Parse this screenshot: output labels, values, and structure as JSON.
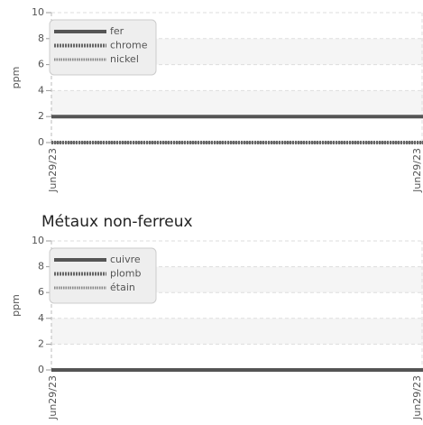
{
  "chart_data": [
    {
      "type": "line",
      "ylabel": "ppm",
      "categories": [
        "Jun29/23",
        "Jun29/23"
      ],
      "series": [
        {
          "name": "fer",
          "color": "#555555",
          "style": "solid",
          "values": [
            2,
            2
          ]
        },
        {
          "name": "chrome",
          "color": "#666666",
          "style": "dotted",
          "values": [
            0,
            0
          ]
        },
        {
          "name": "nickel",
          "color": "#888888",
          "style": "dotted-thin",
          "values": [
            0,
            0
          ]
        }
      ],
      "ylim": [
        0,
        10
      ],
      "yticks": [
        0,
        2,
        4,
        6,
        8,
        10
      ],
      "grid": true,
      "legend": "upper left"
    },
    {
      "type": "line",
      "title": "Métaux non-ferreux",
      "ylabel": "ppm",
      "categories": [
        "Jun29/23",
        "Jun29/23"
      ],
      "series": [
        {
          "name": "cuivre",
          "color": "#555555",
          "style": "solid",
          "values": [
            0,
            0
          ]
        },
        {
          "name": "plomb",
          "color": "#666666",
          "style": "dotted",
          "values": [
            0,
            0
          ]
        },
        {
          "name": "étain",
          "color": "#888888",
          "style": "dotted-thin",
          "values": [
            0,
            0
          ]
        }
      ],
      "ylim": [
        0,
        10
      ],
      "yticks": [
        0,
        2,
        4,
        6,
        8,
        10
      ],
      "grid": true,
      "legend": "upper left"
    }
  ]
}
